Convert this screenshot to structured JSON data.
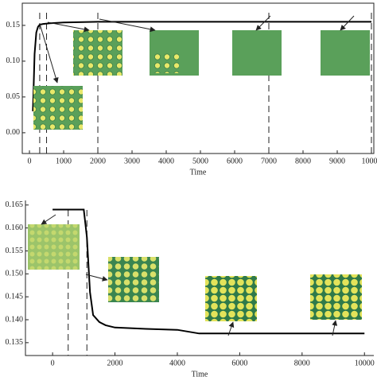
{
  "chart_data": [
    {
      "type": "line",
      "x_label": "Time",
      "box": true,
      "x": [
        100,
        120,
        150,
        200,
        250,
        300,
        400,
        600,
        1000,
        2000,
        4000,
        6000,
        8000,
        10000
      ],
      "series": [
        {
          "color": "#000000",
          "values": [
            0.03,
            0.06,
            0.11,
            0.14,
            0.148,
            0.151,
            0.152,
            0.153,
            0.154,
            0.155,
            0.155,
            0.155,
            0.155,
            0.155
          ]
        }
      ],
      "markers": [
        300,
        500,
        2000,
        7000,
        10000
      ],
      "xlim": [
        -210,
        10070
      ],
      "xticks": [
        0,
        1000,
        2000,
        3000,
        4000,
        5000,
        6000,
        7000,
        8000,
        9000,
        10000
      ],
      "ylim": [
        -0.029,
        0.181
      ],
      "yticks": [
        {
          "value": 0,
          "label": "0.00"
        },
        0.05,
        {
          "value": 0.1,
          "label": "0.10"
        },
        0.15
      ]
    },
    {
      "type": "line",
      "x_label": "Time",
      "box": false,
      "x": [
        0,
        500,
        1000,
        1100,
        1200,
        1300,
        1500,
        1700,
        2000,
        3000,
        4000,
        4700,
        6000,
        8000,
        10000
      ],
      "series": [
        {
          "color": "#000000",
          "values": [
            0.164,
            0.164,
            0.164,
            0.158,
            0.146,
            0.141,
            0.1395,
            0.1388,
            0.1383,
            0.138,
            0.1378,
            0.137,
            0.137,
            0.137,
            0.137
          ]
        }
      ],
      "markers": [
        500,
        1100
      ],
      "xlim": [
        -870,
        10300
      ],
      "xticks": [
        0,
        2000,
        4000,
        6000,
        8000,
        10000
      ],
      "ylim": [
        0.1322,
        0.166
      ],
      "yticks": [
        0.135,
        {
          "value": 0.14,
          "label": "0.140"
        },
        0.145,
        {
          "value": 0.15,
          "label": "0.150"
        },
        0.155,
        {
          "value": 0.16,
          "label": "0.160"
        },
        0.165
      ]
    }
  ]
}
